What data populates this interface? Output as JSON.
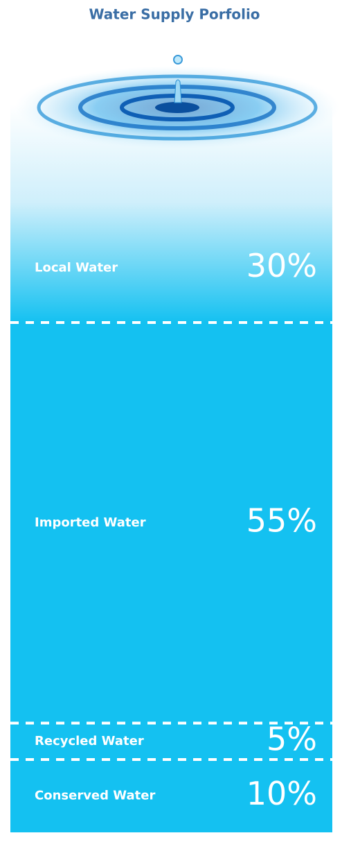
{
  "chart_data": {
    "type": "stacked-column",
    "title": "Water Supply Porfolio",
    "categories": [
      "Local Water",
      "Imported Water",
      "Recycled Water",
      "Conserved Water"
    ],
    "values": [
      30,
      55,
      5,
      10
    ],
    "value_labels": [
      "30%",
      "55%",
      "5%",
      "10%"
    ],
    "color": "#14c1f1"
  }
}
